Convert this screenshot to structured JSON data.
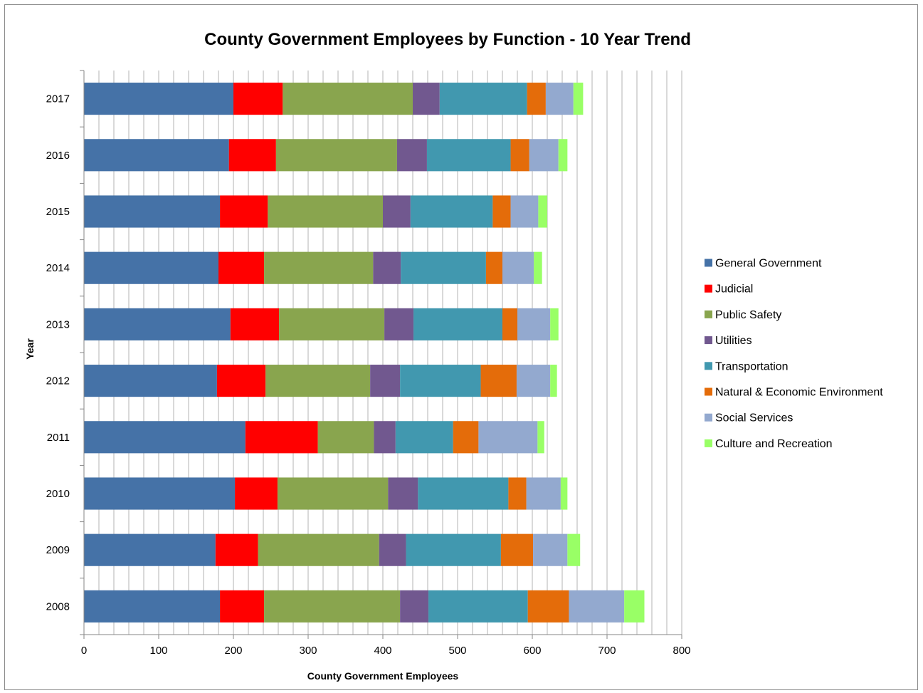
{
  "chart_data": {
    "type": "bar",
    "orientation": "horizontal",
    "stacked": true,
    "title": "County Government Employees by Function - 10 Year Trend",
    "xlabel": "County Government Employees",
    "ylabel": "Year",
    "xlim": [
      0,
      800
    ],
    "x_ticks": [
      "0",
      "100",
      "200",
      "300",
      "400",
      "500",
      "600",
      "700",
      "800"
    ],
    "grid": "vertical",
    "legend_position": "right",
    "categories": [
      "2017",
      "2016",
      "2015",
      "2014",
      "2013",
      "2012",
      "2011",
      "2010",
      "2009",
      "2008"
    ],
    "series": [
      {
        "name": "General Government",
        "color": "#4572A7",
        "values": [
          200,
          194,
          182,
          180,
          196,
          178,
          216,
          202,
          176,
          182
        ]
      },
      {
        "name": "Judicial",
        "color": "#FF0000",
        "values": [
          66,
          63,
          64,
          61,
          65,
          65,
          97,
          57,
          57,
          59
        ]
      },
      {
        "name": "Public Safety",
        "color": "#89A54E",
        "values": [
          174,
          162,
          154,
          146,
          141,
          140,
          75,
          148,
          162,
          182
        ]
      },
      {
        "name": "Utilities",
        "color": "#71588F",
        "values": [
          36,
          40,
          37,
          37,
          39,
          40,
          29,
          40,
          36,
          38
        ]
      },
      {
        "name": "Transportation",
        "color": "#4198AF",
        "values": [
          117,
          112,
          110,
          114,
          119,
          108,
          77,
          121,
          127,
          133
        ]
      },
      {
        "name": "Natural & Economic Environment",
        "color": "#E46C0A",
        "values": [
          25,
          25,
          24,
          22,
          20,
          48,
          34,
          24,
          43,
          55
        ]
      },
      {
        "name": "Social Services",
        "color": "#93A9CF",
        "values": [
          37,
          39,
          37,
          42,
          44,
          45,
          79,
          46,
          46,
          74
        ]
      },
      {
        "name": "Culture and Recreation",
        "color": "#99FF66",
        "values": [
          13,
          12,
          12,
          11,
          11,
          9,
          9,
          9,
          17,
          27
        ]
      }
    ]
  }
}
